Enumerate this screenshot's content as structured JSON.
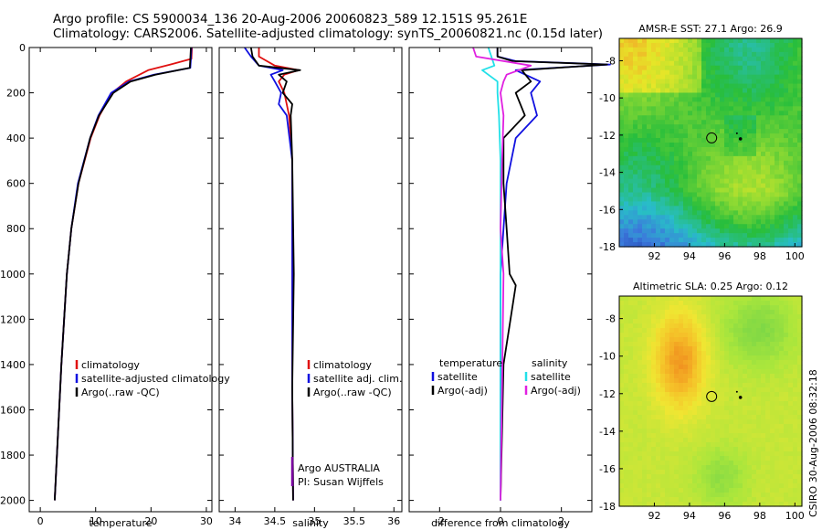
{
  "header": {
    "line1": "Argo profile: CS 5900034_136 20-Aug-2006 20060823_589 12.151S 95.261E",
    "line2": "Climatology: CARS2006. Satellite-adjusted climatology: synTS_20060821.nc (0.15d later)"
  },
  "footer": {
    "stamp": "CSIRO 30-Aug-2006 08:32:18"
  },
  "colors": {
    "climatology": "#e01010",
    "satellite": "#1010e0",
    "argo": "#000000",
    "salinity_satellite": "#22e0e8",
    "salinity_argo": "#e020e0",
    "platform": "#7a00a0"
  },
  "chart_data": [
    {
      "type": "line",
      "panel": "temperature",
      "xlabel": "temperature",
      "ylabel": "",
      "xlim": [
        -2,
        31
      ],
      "ylim": [
        2050,
        0
      ],
      "xticks": [
        0,
        10,
        20,
        30
      ],
      "yticks": [
        0,
        200,
        400,
        600,
        800,
        1000,
        1200,
        1400,
        1600,
        1800,
        2000
      ],
      "legend": [
        "climatology",
        "satellite-adjusted climatology",
        "Argo(..raw -QC)"
      ],
      "legend_position": "lower-right",
      "series": [
        {
          "name": "climatology",
          "color_key": "climatology",
          "depth": [
            0,
            50,
            75,
            100,
            150,
            200,
            300,
            400,
            600,
            800,
            1000,
            1400,
            2000
          ],
          "values": [
            27.4,
            27.3,
            23.5,
            19.5,
            15.5,
            13.0,
            10.7,
            9.1,
            6.9,
            5.6,
            4.8,
            3.8,
            2.6
          ]
        },
        {
          "name": "satellite-adjusted climatology",
          "color_key": "satellite",
          "depth": [
            0,
            50,
            90,
            120,
            150,
            200,
            300,
            400,
            600,
            800,
            1000,
            1400,
            2000
          ],
          "values": [
            27.3,
            27.2,
            27.1,
            20.5,
            16.0,
            12.8,
            10.5,
            9.0,
            6.8,
            5.6,
            4.8,
            3.8,
            2.6
          ]
        },
        {
          "name": "Argo(..raw -QC)",
          "color_key": "argo",
          "depth": [
            0,
            50,
            90,
            120,
            150,
            200,
            300,
            400,
            600,
            800,
            1000,
            1400,
            2000
          ],
          "values": [
            27.2,
            27.1,
            27.0,
            20.8,
            16.3,
            13.2,
            10.6,
            9.0,
            6.9,
            5.6,
            4.8,
            3.8,
            2.6
          ]
        }
      ]
    },
    {
      "type": "line",
      "panel": "salinity",
      "xlabel": "salinity",
      "xlim": [
        33.8,
        36.1
      ],
      "ylim": [
        2050,
        0
      ],
      "xticks": [
        34,
        34.5,
        35,
        35.5,
        36
      ],
      "legend": [
        "climatology",
        "satellite adj. clim.",
        "Argo(..raw -QC)"
      ],
      "legend_position": "lower-right",
      "annotation": [
        "Argo AUSTRALIA",
        "PI: Susan Wijffels"
      ],
      "series": [
        {
          "name": "climatology",
          "color_key": "climatology",
          "depth": [
            0,
            40,
            80,
            100,
            120,
            150,
            200,
            300,
            500,
            1000,
            1500,
            2000
          ],
          "values": [
            34.3,
            34.3,
            34.5,
            34.8,
            34.62,
            34.55,
            34.62,
            34.68,
            34.72,
            34.72,
            34.72,
            34.73
          ]
        },
        {
          "name": "satellite adj. clim.",
          "color_key": "satellite",
          "depth": [
            0,
            40,
            80,
            100,
            120,
            150,
            200,
            250,
            300,
            500,
            1000,
            1500,
            2000
          ],
          "values": [
            34.12,
            34.2,
            34.3,
            34.6,
            34.45,
            34.5,
            34.58,
            34.55,
            34.65,
            34.72,
            34.72,
            34.72,
            34.73
          ]
        },
        {
          "name": "Argo(..raw -QC)",
          "color_key": "argo",
          "depth": [
            0,
            40,
            80,
            100,
            120,
            150,
            200,
            250,
            300,
            500,
            1000,
            1500,
            2000
          ],
          "values": [
            34.2,
            34.22,
            34.3,
            34.82,
            34.55,
            34.65,
            34.6,
            34.72,
            34.7,
            34.72,
            34.74,
            34.72,
            34.73
          ]
        }
      ]
    },
    {
      "type": "line",
      "panel": "difference",
      "xlabel": "difference from climatology",
      "xlim": [
        -3,
        3
      ],
      "ylim": [
        2050,
        0
      ],
      "xticks": [
        -2,
        0,
        2
      ],
      "legend_title_left": "temperature",
      "legend_title_right": "salinity",
      "legend_left": [
        "satellite",
        "Argo(-adj)"
      ],
      "legend_right": [
        "satellite",
        "Argo(-adj)"
      ],
      "legend_position": "lower",
      "series": [
        {
          "name": "temperature satellite",
          "color_key": "satellite",
          "depth": [
            0,
            40,
            60,
            75,
            100,
            150,
            200,
            300,
            400,
            600,
            800,
            1000,
            1400,
            2000
          ],
          "values": [
            -0.1,
            -0.1,
            0.5,
            3.6,
            0.5,
            1.3,
            1.0,
            1.2,
            0.5,
            0.2,
            0.1,
            0.0,
            0.0,
            0.0
          ]
        },
        {
          "name": "temperature Argo(-adj)",
          "color_key": "argo",
          "depth": [
            0,
            40,
            60,
            75,
            100,
            150,
            200,
            300,
            400,
            600,
            800,
            1000,
            1050,
            1400,
            2000
          ],
          "values": [
            -0.1,
            -0.1,
            0.4,
            3.5,
            0.7,
            1.0,
            0.5,
            0.8,
            0.1,
            0.1,
            0.2,
            0.3,
            0.5,
            0.1,
            0.0
          ]
        },
        {
          "name": "salinity satellite",
          "color_key": "salinity_satellite",
          "depth": [
            0,
            40,
            80,
            100,
            150,
            200,
            300,
            500,
            800,
            1000,
            1500,
            2000
          ],
          "values": [
            -0.4,
            -0.3,
            -0.2,
            -0.6,
            -0.1,
            -0.1,
            -0.05,
            0.0,
            0.0,
            0.0,
            0.0,
            0.0
          ]
        },
        {
          "name": "salinity Argo(-adj)",
          "color_key": "salinity_argo",
          "depth": [
            0,
            40,
            80,
            100,
            120,
            150,
            200,
            300,
            500,
            800,
            1000,
            1500,
            2000
          ],
          "values": [
            -0.9,
            -0.8,
            1.0,
            0.6,
            0.2,
            0.1,
            0.0,
            0.1,
            0.05,
            0.0,
            0.1,
            0.05,
            0.0
          ]
        }
      ]
    },
    {
      "type": "heatmap",
      "panel": "sst-map",
      "title": "AMSR-E SST: 27.1 Argo: 26.9",
      "xlim": [
        90,
        100.4
      ],
      "ylim": [
        -18,
        -6.8
      ],
      "xticks": [
        92,
        94,
        96,
        98,
        100
      ],
      "yticks": [
        -8,
        -10,
        -12,
        -14,
        -16,
        -18
      ],
      "argo_position": {
        "lon": 95.261,
        "lat": -12.151
      },
      "track_points": [
        {
          "lon": 96.9,
          "lat": -12.2
        },
        {
          "lon": 96.7,
          "lat": -11.9
        }
      ]
    },
    {
      "type": "heatmap",
      "panel": "sla-map",
      "title": "Altimetric SLA: 0.25 Argo: 0.12",
      "xlim": [
        90,
        100.4
      ],
      "ylim": [
        -18,
        -6.8
      ],
      "xticks": [
        92,
        94,
        96,
        98,
        100
      ],
      "yticks": [
        -8,
        -10,
        -12,
        -14,
        -16,
        -18
      ],
      "argo_position": {
        "lon": 95.261,
        "lat": -12.151
      },
      "track_points": [
        {
          "lon": 96.9,
          "lat": -12.2
        },
        {
          "lon": 96.7,
          "lat": -11.9
        }
      ]
    }
  ]
}
